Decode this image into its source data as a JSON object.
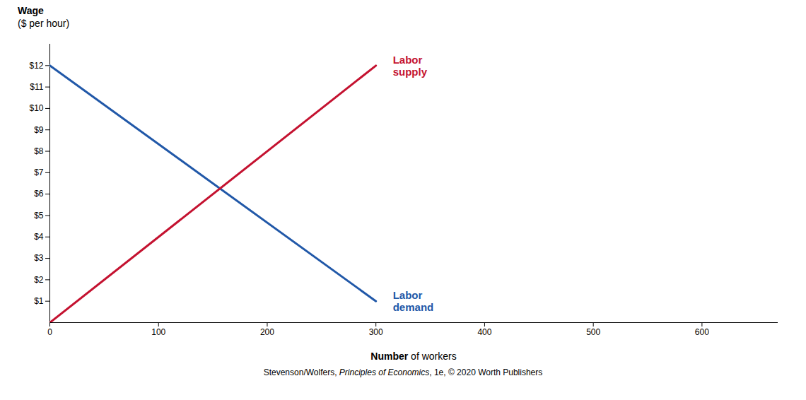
{
  "chart_data": {
    "type": "line",
    "x": [
      0,
      300
    ],
    "series": [
      {
        "name": "Labor demand",
        "color": "#2158a8",
        "values": [
          12,
          1
        ]
      },
      {
        "name": "Labor supply",
        "color": "#c41230",
        "values": [
          0,
          12
        ]
      }
    ],
    "xlabel": "Number of workers",
    "ylabel": "Wage ($ per hour)",
    "caption": [
      "Stevenson/Wolfers, ",
      "Principles of Economics",
      ", 1e, © 2020 Worth Publishers"
    ],
    "xlim": [
      0,
      670
    ],
    "ylim": [
      0,
      13
    ],
    "xticks": [
      0,
      100,
      200,
      300,
      400,
      500,
      600
    ],
    "yticks": [
      {
        "value": 1,
        "label": "$1"
      },
      {
        "value": 2,
        "label": "$2"
      },
      {
        "value": 3,
        "label": "$3"
      },
      {
        "value": 4,
        "label": "$4"
      },
      {
        "value": 5,
        "label": "$5"
      },
      {
        "value": 6,
        "label": "$6"
      },
      {
        "value": 7,
        "label": "$7"
      },
      {
        "value": 8,
        "label": "$8"
      },
      {
        "value": 9,
        "label": "$9"
      },
      {
        "value": 10,
        "label": "$10"
      },
      {
        "value": 11,
        "label": "$11"
      },
      {
        "value": 12,
        "label": "$12"
      }
    ],
    "grid": false
  }
}
